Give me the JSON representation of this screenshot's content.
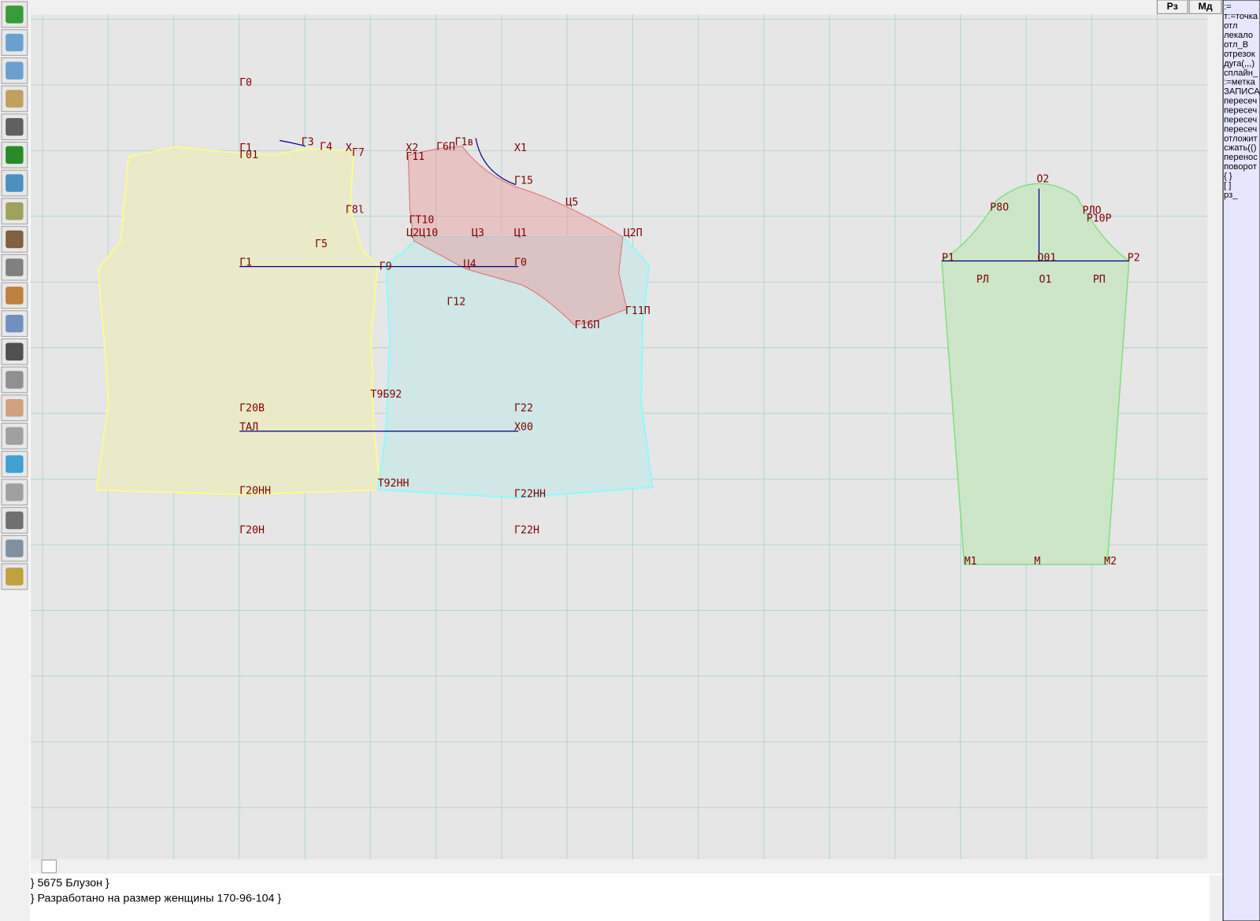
{
  "top_buttons": [
    "Рз",
    "Мд"
  ],
  "commands": [
    ":=",
    "т:=точка",
    "отл",
    "лекало",
    "отл_В",
    "отрезок",
    "дуга(,,,)",
    "сплайн_",
    ":=метка",
    "ЗАПИСА",
    "пересеч",
    "пересеч",
    "пересеч",
    "пересеч",
    "отложит",
    "сжать(()",
    "перенос",
    "поворот",
    "{ }",
    "[ ]",
    "рз_"
  ],
  "labels": [
    "Г0",
    "Г1",
    "Г01",
    "Г3",
    "Г4",
    "Х",
    "Г7",
    "Х2",
    "Г6П",
    "Г1в",
    "Х1",
    "Г11",
    "Г15",
    "Г8l",
    "Ц5",
    "Г5",
    "ГТ10",
    "Ц2Ц10",
    "Ц3",
    "Ц1",
    "Ц2П",
    "Г1",
    "Г9",
    "Ц4",
    "Г0",
    "Г12",
    "Г11П",
    "Г16П",
    "Т9Б92",
    "Г20В",
    "Г22",
    "ТАЛ",
    "Х00",
    "Г20НН",
    "Т92НН",
    "Г22НН",
    "Г20Н",
    "Г22Н",
    "О2",
    "Р8О",
    "РЛО",
    "Р10Р",
    "Р1",
    "О01",
    "Р2",
    "РЛ",
    "О1",
    "РП",
    "М1",
    "М",
    "М2"
  ],
  "status_lines": [
    "} 5675  Блузон  }",
    "} Разработано на размер женщины 170-96-104 }"
  ]
}
